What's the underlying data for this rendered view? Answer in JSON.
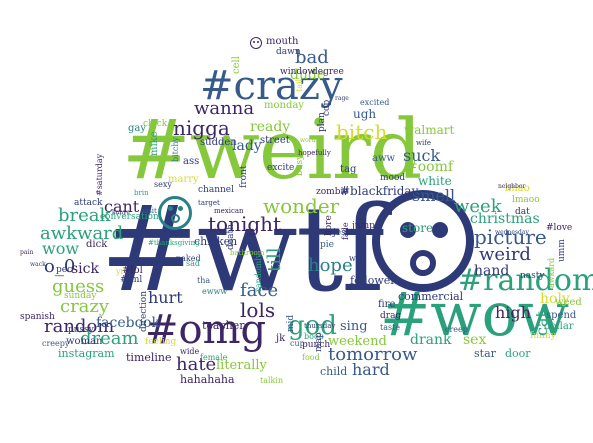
{
  "palette": {
    "navy": "#2e3a78",
    "purple": "#3d2566",
    "blue": "#365a8c",
    "teal": "#27808a",
    "green": "#2aa17a",
    "lime": "#86c83c",
    "yellow": "#d4dd2a"
  },
  "words": {
    "wtf": "#wtf",
    "weird_big": "#weird",
    "wow_big": "#wow",
    "crazy_tag": "#crazy",
    "omg": "#omg",
    "random_tag": "#random",
    "nigga": "nigga",
    "bitch": "bitch",
    "wonder": "wonder",
    "tonight": "tonight",
    "god": "god",
    "lols": "lols",
    "wanna": "wanna",
    "bad": "bad",
    "dude": "dude",
    "lady": "lady",
    "ready": "ready",
    "face": "face",
    "hope": "hope",
    "hate": "hate",
    "tomorrow": "tomorrow",
    "picture": "picture",
    "weird": "weird",
    "week": "week",
    "christmas": "christmas",
    "random": "random",
    "crazy": "crazy",
    "guess": "guess",
    "awkward": "awkward",
    "break": "break",
    "dream": "dream",
    "facebook": "facebook",
    "hurt": "hurt",
    "o_0": "o_0",
    "cant": "cant",
    "wow": "wow",
    "sick": "sick",
    "suck": "suck",
    "smell": "smell",
    "white": "white",
    "oomf": "#oomf",
    "blackfriday": "#blackfriday",
    "store": "store",
    "hand": "hand",
    "holy": "holy",
    "high": "high",
    "sex": "sex",
    "drank": "drank",
    "hard": "hard",
    "sing": "sing",
    "weekend": "weekend",
    "commercial": "commercial",
    "follower": "follower",
    "cat": "cat",
    "literally": "literally",
    "instagram": "instagram",
    "timeline": "timeline",
    "hahahaha": "hahahaha",
    "child": "child",
    "star": "star",
    "door": "door",
    "dollar": "dollar",
    "weed": "weed",
    "spend": "spend",
    "woman": "woman",
    "teacher": "teacher",
    "chicken": "chicken",
    "lmao": "lmao",
    "lmaoo": "lmaoo",
    "walmart": "walmart",
    "mouth": "mouth",
    "dawn": "dawn",
    "window": "window",
    "degree": "degree",
    "ugh": "ugh",
    "monday": "monday",
    "plan": "plan",
    "excited": "excited",
    "gay": "gay",
    "chick": "chick",
    "mike": "mike",
    "street": "street",
    "cop": "cop",
    "sudden": "sudden",
    "aww": "aww",
    "tag": "tag",
    "ass": "ass",
    "marry": "marry",
    "busy": "busy",
    "mood": "mood",
    "zombie": "zombie",
    "excite": "excite",
    "front": "front",
    "channel": "channel",
    "till": "till",
    "pussy": "pussy",
    "sunday": "sunday",
    "spanish": "spanish",
    "creepy": "creepy",
    "pec": "pec",
    "dick": "dick",
    "attack": "attack",
    "conversation": "conversation",
    "punch": "punch",
    "food": "food",
    "map": "map",
    "fire": "fire",
    "drag": "drag",
    "taste": "taste",
    "creep": "creep",
    "jump": "jump",
    "fade": "fade",
    "jesus": "jesus",
    "bore": "bore",
    "death": "death",
    "naked": "naked",
    "wide": "wide",
    "female": "female",
    "feeling": "feeling",
    "ewww": "ewww",
    "sad": "sad",
    "tha": "tha",
    "nasty": "nasty",
    "dat": "dat",
    "love": "#love",
    "funny": "funny",
    "lol": "#lol",
    "fml": "#fml",
    "direction": "direction",
    "boob": "boob",
    "talkin": "talkin",
    "thursday": "thursday",
    "mid": "mid",
    "jk": "jk",
    "cup": "cup",
    "yr": "yr",
    "pie": "pie",
    "wth": "wth",
    "sexy": "sexy",
    "brin": "brin",
    "visit": "visit",
    "wife": "wife",
    "tail": "tail",
    "hopefully": "hopefully",
    "rage": "rage",
    "thanksgiving": "#thanksgiving",
    "cell": "cell",
    "saturday": "#saturday",
    "wednesday": "wednesday",
    "pain": "pain",
    "bathroom": "bathroom",
    "mexican": "mexican",
    "target": "target",
    "awkard": "awkard",
    "randomly": "randomly",
    "umm": "umm",
    "neighbor": "neighbor",
    "wack": "wack",
    "bitchy": "bitchy",
    "kanye": "kanye",
    "word": "word"
  }
}
